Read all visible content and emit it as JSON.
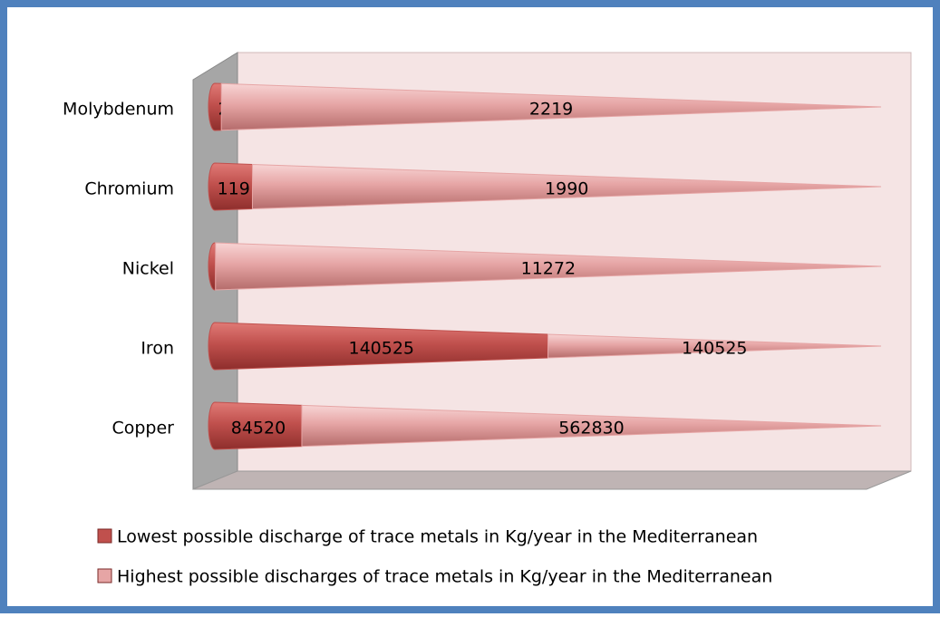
{
  "chart_data": {
    "type": "bar",
    "orientation": "horizontal",
    "stacking": "percent",
    "shape": "cone",
    "categories": [
      "Copper",
      "Iron",
      "Nickel",
      "Chromium",
      "Molybdenum"
    ],
    "series": [
      {
        "name": "Lowest possible discharge of trace metals in Kg/year in the Mediterranean",
        "color": "#c0504d",
        "values": [
          84520,
          140525,
          11.2,
          119,
          22
        ]
      },
      {
        "name": "Highest possible discharges of trace metals in Kg/year in the Mediterranean",
        "color": "#e6a5a5",
        "values": [
          562830,
          140525,
          11272,
          1990,
          2219
        ]
      }
    ],
    "legend": "bottom"
  }
}
